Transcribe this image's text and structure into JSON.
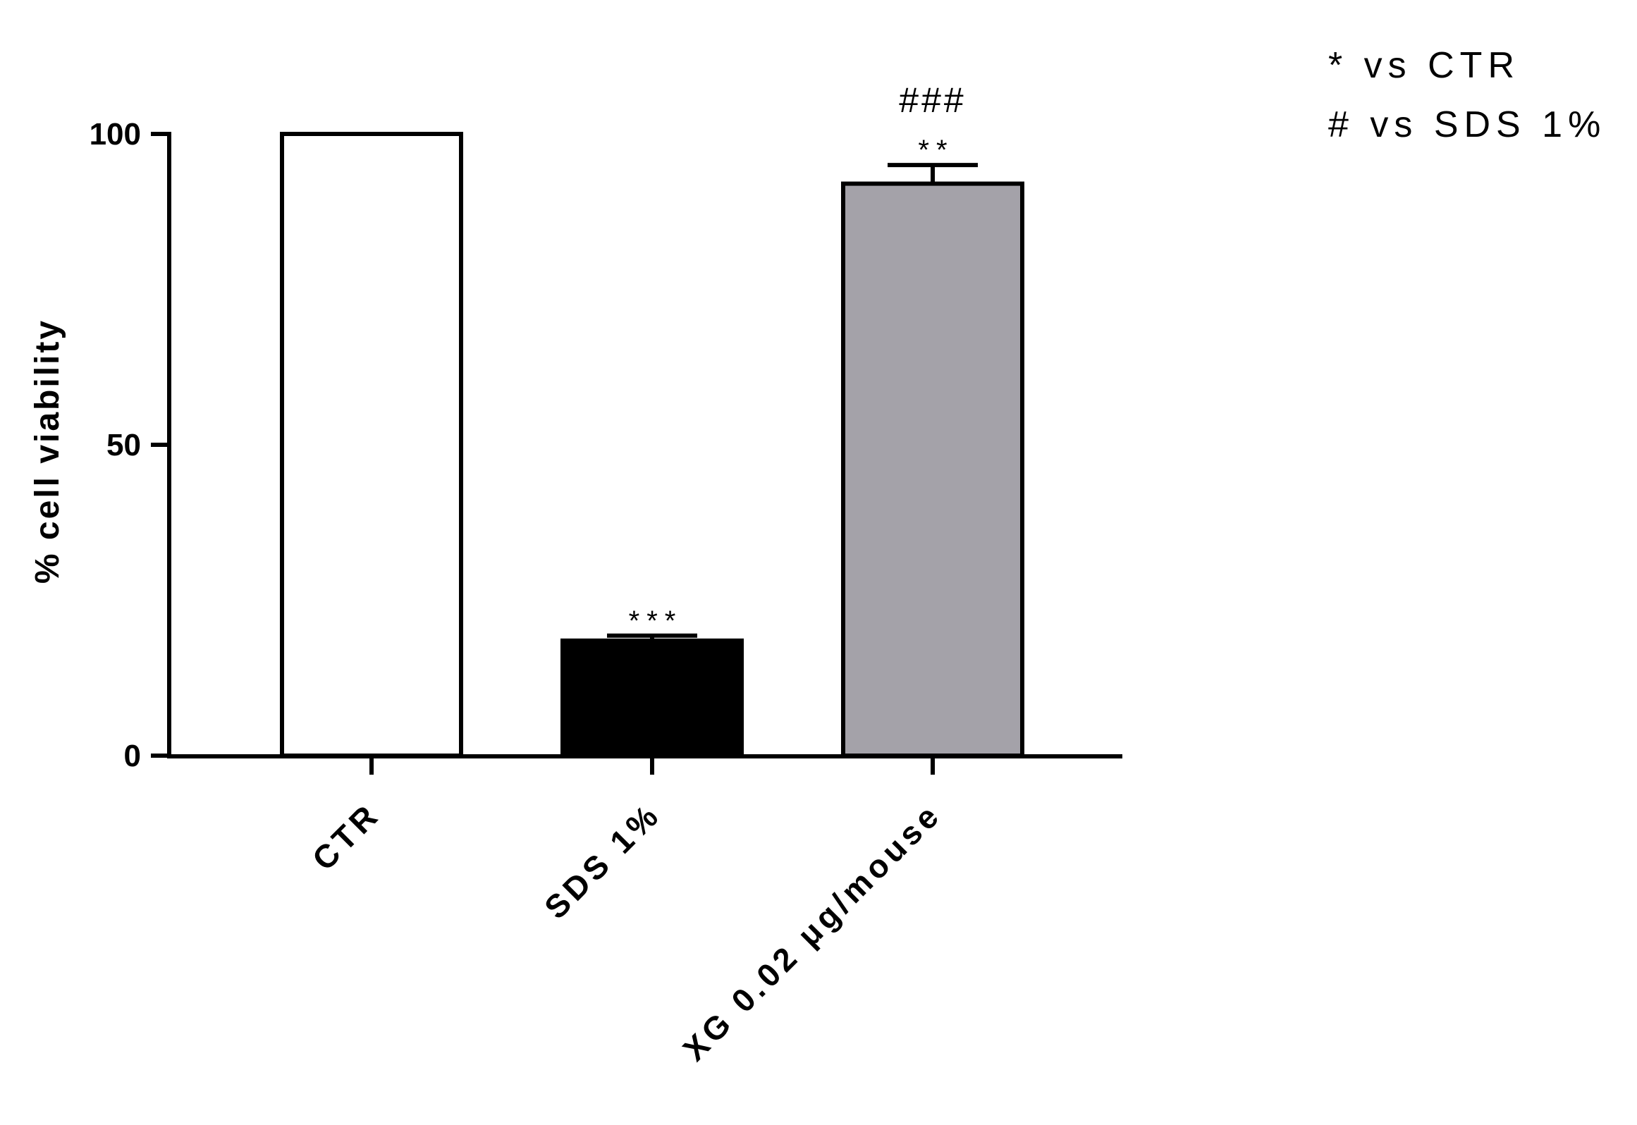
{
  "chart_data": {
    "type": "bar",
    "ylabel": "% cell viability",
    "ylim": [
      0,
      100
    ],
    "yticks": [
      "0",
      "50",
      "100"
    ],
    "categories": [
      "CTR",
      "SDS 1%",
      "XG 0.02 μg/mouse"
    ],
    "values": [
      100,
      18.5,
      92
    ],
    "errors": [
      0,
      0.8,
      3
    ],
    "colors": [
      "#ffffff",
      "#000000",
      "#a4a2a9"
    ],
    "significance_star": [
      "",
      "***",
      "**"
    ],
    "significance_hash": [
      "",
      "",
      "###"
    ],
    "legend": [
      "* vs CTR",
      "# vs SDS 1%"
    ],
    "grid": false
  }
}
